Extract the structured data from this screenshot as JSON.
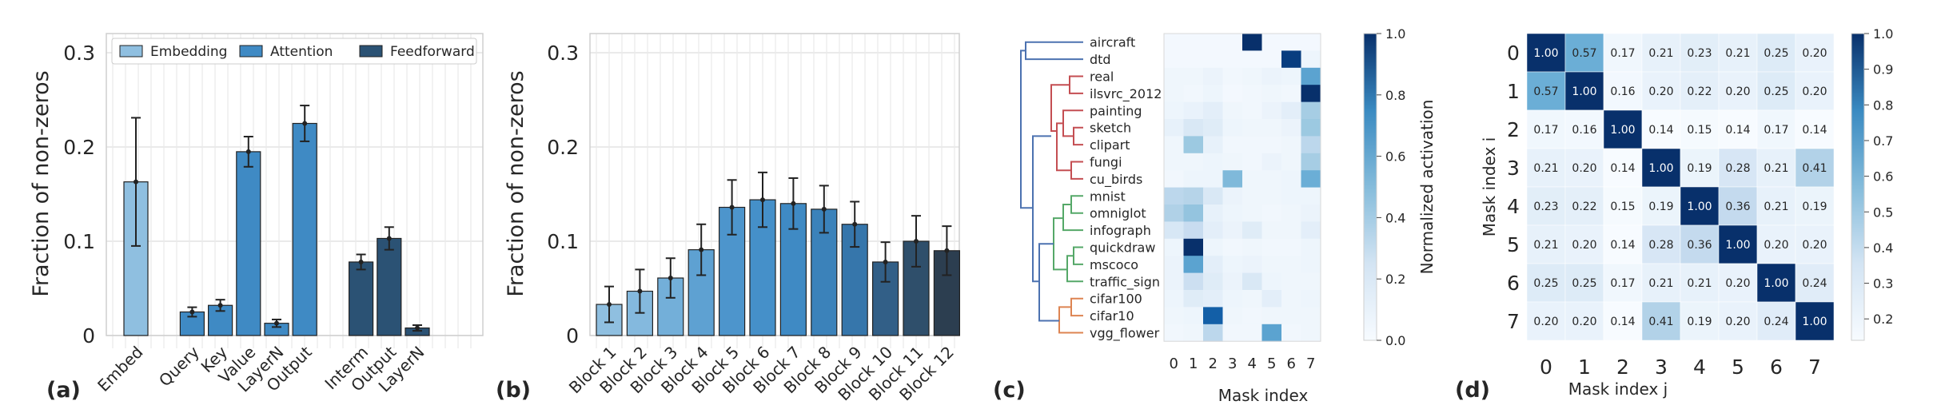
{
  "chart_data": [
    {
      "panel_label": "(a)",
      "type": "bar",
      "ylabel": "Fraction of non-zeros",
      "ylim": [
        0,
        0.3
      ],
      "yticks": [
        0,
        0.1,
        0.2,
        0.3
      ],
      "ytick_labels": [
        "0",
        "0.1",
        "0.2",
        "0.3"
      ],
      "legend": {
        "placement": "top",
        "entries": [
          {
            "label": "Embedding",
            "color": "#8fbfe0"
          },
          {
            "label": "Attention",
            "color": "#3f8ac4"
          },
          {
            "label": "Feedforward",
            "color": "#2b5274"
          }
        ]
      },
      "bars": [
        {
          "label": "Embed",
          "group": "Embedding",
          "value": 0.163,
          "err": 0.068,
          "color": "#8fbfe0"
        },
        {
          "label": "Query",
          "group": "Attention",
          "value": 0.025,
          "err": 0.005,
          "color": "#3f8ac4"
        },
        {
          "label": "Key",
          "group": "Attention",
          "value": 0.032,
          "err": 0.006,
          "color": "#3f8ac4"
        },
        {
          "label": "Value",
          "group": "Attention",
          "value": 0.195,
          "err": 0.016,
          "color": "#3f8ac4"
        },
        {
          "label": "LayerN",
          "group": "Attention",
          "value": 0.013,
          "err": 0.004,
          "color": "#3f8ac4"
        },
        {
          "label": "Output",
          "group": "Attention",
          "value": 0.225,
          "err": 0.019,
          "color": "#3f8ac4"
        },
        {
          "label": "Interm",
          "group": "Feedforward",
          "value": 0.078,
          "err": 0.008,
          "color": "#2b5274"
        },
        {
          "label": "Output",
          "group": "Feedforward",
          "value": 0.103,
          "err": 0.012,
          "color": "#2b5274"
        },
        {
          "label": "LayerN",
          "group": "Feedforward",
          "value": 0.008,
          "err": 0.003,
          "color": "#2b5274"
        }
      ]
    },
    {
      "panel_label": "(b)",
      "type": "bar",
      "ylabel": "Fraction of non-zeros",
      "ylim": [
        0,
        0.3
      ],
      "yticks": [
        0,
        0.1,
        0.2,
        0.3
      ],
      "ytick_labels": [
        "0",
        "0.1",
        "0.2",
        "0.3"
      ],
      "categories": [
        "Block 1",
        "Block 2",
        "Block 3",
        "Block 4",
        "Block 5",
        "Block 6",
        "Block 7",
        "Block 8",
        "Block 9",
        "Block 10",
        "Block 11",
        "Block 12"
      ],
      "values": [
        0.033,
        0.047,
        0.061,
        0.091,
        0.136,
        0.144,
        0.14,
        0.134,
        0.118,
        0.078,
        0.1,
        0.09
      ],
      "errors": [
        0.019,
        0.023,
        0.021,
        0.027,
        0.029,
        0.029,
        0.027,
        0.025,
        0.024,
        0.021,
        0.027,
        0.026
      ],
      "colors": [
        "#8fbfe0",
        "#84b9de",
        "#73afd9",
        "#5ea1d2",
        "#4d95cc",
        "#4590c9",
        "#3f8ac4",
        "#3b82ba",
        "#3676ab",
        "#325f87",
        "#2f4f6b",
        "#2c3e50"
      ]
    },
    {
      "panel_label": "(c)",
      "type": "heatmap",
      "xlabel": "Mask index",
      "x": [
        0,
        1,
        2,
        3,
        4,
        5,
        6,
        7
      ],
      "rows": [
        "aircraft",
        "dtd",
        "real",
        "ilsvrc_2012",
        "painting",
        "sketch",
        "clipart",
        "fungi",
        "cu_birds",
        "mnist",
        "omniglot",
        "infograph",
        "quickdraw",
        "mscoco",
        "traffic_sign",
        "cifar100",
        "cifar10",
        "vgg_flower"
      ],
      "colorbar": {
        "label": "Normalized activation",
        "range": [
          0,
          1
        ],
        "ticks": [
          "0.0",
          "0.2",
          "0.4",
          "0.6",
          "0.8",
          "1.0"
        ]
      },
      "values": [
        [
          0.02,
          0.02,
          0.02,
          0.02,
          1.0,
          0.02,
          0.02,
          0.02
        ],
        [
          0.02,
          0.02,
          0.02,
          0.02,
          0.02,
          0.02,
          0.95,
          0.05
        ],
        [
          0.04,
          0.04,
          0.06,
          0.03,
          0.04,
          0.06,
          0.05,
          0.55
        ],
        [
          0.04,
          0.03,
          0.05,
          0.02,
          0.03,
          0.04,
          0.03,
          1.0
        ],
        [
          0.05,
          0.07,
          0.1,
          0.04,
          0.03,
          0.06,
          0.1,
          0.35
        ],
        [
          0.08,
          0.15,
          0.12,
          0.05,
          0.04,
          0.04,
          0.06,
          0.38
        ],
        [
          0.04,
          0.38,
          0.08,
          0.03,
          0.03,
          0.03,
          0.04,
          0.28
        ],
        [
          0.04,
          0.04,
          0.05,
          0.04,
          0.03,
          0.06,
          0.04,
          0.35
        ],
        [
          0.03,
          0.05,
          0.05,
          0.45,
          0.04,
          0.04,
          0.05,
          0.5
        ],
        [
          0.28,
          0.3,
          0.15,
          0.06,
          0.04,
          0.04,
          0.05,
          0.05
        ],
        [
          0.32,
          0.4,
          0.08,
          0.05,
          0.04,
          0.03,
          0.04,
          0.06
        ],
        [
          0.16,
          0.24,
          0.1,
          0.06,
          0.12,
          0.04,
          0.04,
          0.1
        ],
        [
          0.05,
          1.0,
          0.05,
          0.03,
          0.04,
          0.03,
          0.03,
          0.05
        ],
        [
          0.06,
          0.55,
          0.1,
          0.05,
          0.06,
          0.04,
          0.04,
          0.05
        ],
        [
          0.06,
          0.22,
          0.12,
          0.06,
          0.15,
          0.05,
          0.04,
          0.04
        ],
        [
          0.05,
          0.12,
          0.1,
          0.05,
          0.04,
          0.1,
          0.04,
          0.05
        ],
        [
          0.04,
          0.05,
          0.82,
          0.04,
          0.03,
          0.04,
          0.04,
          0.04
        ],
        [
          0.03,
          0.04,
          0.28,
          0.03,
          0.03,
          0.55,
          0.03,
          0.04
        ]
      ],
      "dendrogram": {
        "colors": [
          "#4c72b0",
          "#c44e52",
          "#55a868",
          "#dd8452"
        ]
      }
    },
    {
      "panel_label": "(d)",
      "type": "heatmap",
      "xlabel": "Mask index j",
      "ylabel": "Mask index i",
      "x": [
        0,
        1,
        2,
        3,
        4,
        5,
        6,
        7
      ],
      "y": [
        0,
        1,
        2,
        3,
        4,
        5,
        6,
        7
      ],
      "colorbar": {
        "range": [
          0.14,
          1.0
        ],
        "ticks": [
          "0.2",
          "0.3",
          "0.4",
          "0.5",
          "0.6",
          "0.7",
          "0.8",
          "0.9",
          "1.0"
        ]
      },
      "values": [
        [
          1.0,
          0.57,
          0.17,
          0.21,
          0.23,
          0.21,
          0.25,
          0.2
        ],
        [
          0.57,
          1.0,
          0.16,
          0.2,
          0.22,
          0.2,
          0.25,
          0.2
        ],
        [
          0.17,
          0.16,
          1.0,
          0.14,
          0.15,
          0.14,
          0.17,
          0.14
        ],
        [
          0.21,
          0.2,
          0.14,
          1.0,
          0.19,
          0.28,
          0.21,
          0.41
        ],
        [
          0.23,
          0.22,
          0.15,
          0.19,
          1.0,
          0.36,
          0.21,
          0.19
        ],
        [
          0.21,
          0.2,
          0.14,
          0.28,
          0.36,
          1.0,
          0.2,
          0.2
        ],
        [
          0.25,
          0.25,
          0.17,
          0.21,
          0.21,
          0.2,
          1.0,
          0.24
        ],
        [
          0.2,
          0.2,
          0.14,
          0.41,
          0.19,
          0.2,
          0.24,
          1.0
        ]
      ],
      "cell_labels": [
        [
          "1.00",
          "0.57",
          "0.17",
          "0.21",
          "0.23",
          "0.21",
          "0.25",
          "0.20"
        ],
        [
          "0.57",
          "1.00",
          "0.16",
          "0.20",
          "0.22",
          "0.20",
          "0.25",
          "0.20"
        ],
        [
          "0.17",
          "0.16",
          "1.00",
          "0.14",
          "0.15",
          "0.14",
          "0.17",
          "0.14"
        ],
        [
          "0.21",
          "0.20",
          "0.14",
          "1.00",
          "0.19",
          "0.28",
          "0.21",
          "0.41"
        ],
        [
          "0.23",
          "0.22",
          "0.15",
          "0.19",
          "1.00",
          "0.36",
          "0.21",
          "0.19"
        ],
        [
          "0.21",
          "0.20",
          "0.14",
          "0.28",
          "0.36",
          "1.00",
          "0.20",
          "0.20"
        ],
        [
          "0.25",
          "0.25",
          "0.17",
          "0.21",
          "0.21",
          "0.20",
          "1.00",
          "0.24"
        ],
        [
          "0.20",
          "0.20",
          "0.14",
          "0.41",
          "0.19",
          "0.20",
          "0.24",
          "1.00"
        ]
      ]
    }
  ]
}
